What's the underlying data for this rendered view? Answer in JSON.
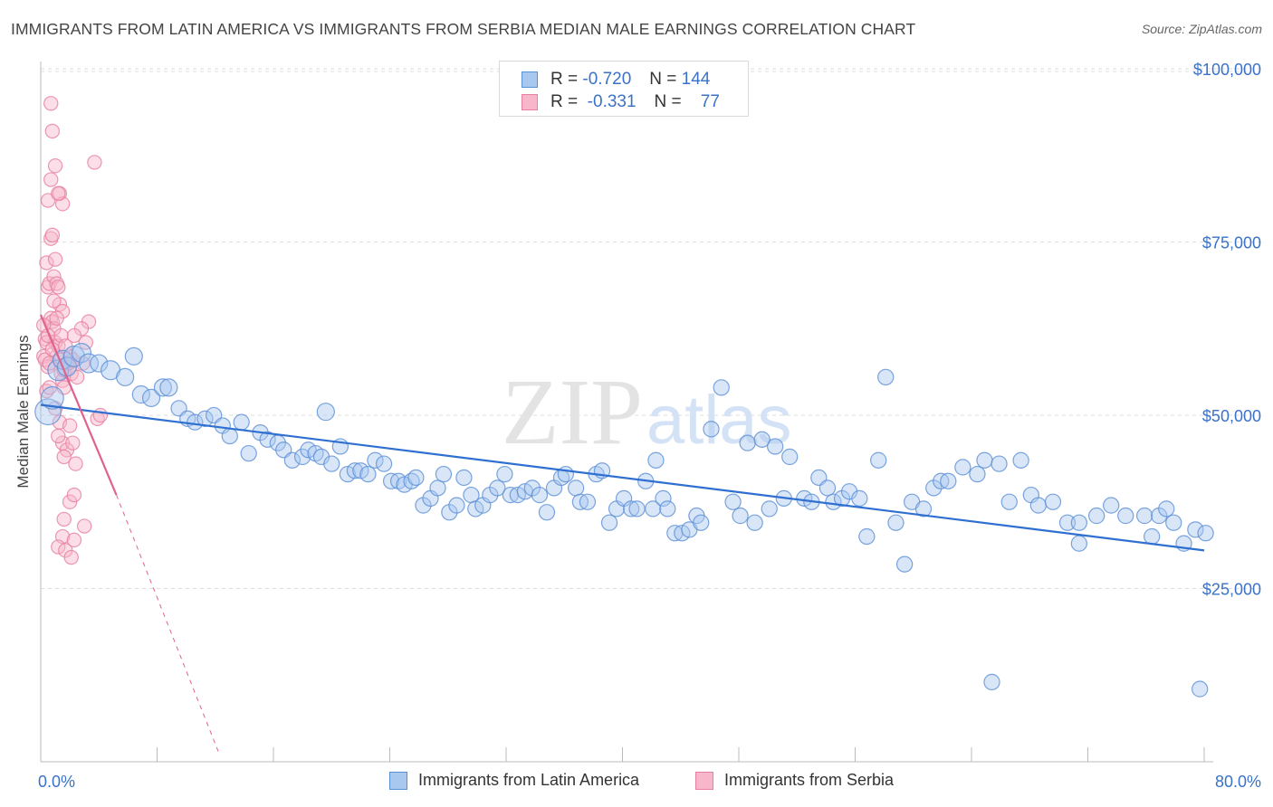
{
  "header": {
    "title": "IMMIGRANTS FROM LATIN AMERICA VS IMMIGRANTS FROM SERBIA MEDIAN MALE EARNINGS CORRELATION CHART",
    "source": "Source: ZipAtlas.com"
  },
  "watermark": {
    "zip": "ZIP",
    "atlas": "atlas"
  },
  "legend_top": {
    "rows": [
      {
        "r_label": "R =",
        "r_value": "-0.720",
        "n_label": "N =",
        "n_value": "144"
      },
      {
        "r_label": "R =",
        "r_value": "-0.331",
        "n_label": "N =",
        "n_value": "77"
      }
    ]
  },
  "colors": {
    "blue_fill": "#a9c8f0",
    "blue_stroke": "#5b8fd6",
    "blue_line": "#2e6fd1",
    "pink_fill": "#f7b6c9",
    "pink_stroke": "#e77fa0",
    "pink_line": "#e0628d",
    "axis_label": "#3a72c9"
  },
  "chart_data": {
    "type": "scatter",
    "title": "IMMIGRANTS FROM LATIN AMERICA VS IMMIGRANTS FROM SERBIA MEDIAN MALE EARNINGS CORRELATION CHART",
    "xlabel": "",
    "ylabel": "Median Male Earnings",
    "xlim": [
      0,
      80
    ],
    "ylim": [
      0,
      105000
    ],
    "x_tick_labels": [
      "0.0%",
      "80.0%"
    ],
    "y_ticks": [
      25000,
      50000,
      75000,
      100000
    ],
    "y_tick_labels": [
      "$25,000",
      "$50,000",
      "$75,000",
      "$100,000"
    ],
    "grid": true,
    "legend_placement": "bottom",
    "series": [
      {
        "name": "Immigrants from Latin America",
        "color": "#a9c8f0",
        "trend": {
          "x": [
            0,
            80
          ],
          "y": [
            51500,
            30500
          ]
        },
        "points": [
          [
            0.5,
            50500,
            1.5
          ],
          [
            0.8,
            52500,
            1.3
          ],
          [
            1.2,
            56500,
            1.2
          ],
          [
            1.5,
            58000,
            1.1
          ],
          [
            1.8,
            57000,
            1.1
          ],
          [
            2.3,
            58500,
            1.2
          ],
          [
            2.8,
            59000,
            1.1
          ],
          [
            3.3,
            57500,
            1.1
          ],
          [
            4.0,
            57500,
            1.0
          ],
          [
            4.8,
            56500,
            1.1
          ],
          [
            5.8,
            55500,
            1.0
          ],
          [
            6.4,
            58500,
            1.0
          ],
          [
            6.9,
            53000,
            1.0
          ],
          [
            7.6,
            52500,
            1.0
          ],
          [
            8.4,
            54000,
            1.0
          ],
          [
            8.8,
            54000,
            1.0
          ],
          [
            9.5,
            51000,
            0.9
          ],
          [
            10.1,
            49500,
            0.9
          ],
          [
            10.6,
            49000,
            0.9
          ],
          [
            11.3,
            49500,
            0.9
          ],
          [
            11.9,
            50000,
            0.9
          ],
          [
            12.5,
            48500,
            0.9
          ],
          [
            13.0,
            47000,
            0.9
          ],
          [
            13.8,
            49000,
            0.9
          ],
          [
            14.3,
            44500,
            0.9
          ],
          [
            15.1,
            47500,
            0.9
          ],
          [
            15.6,
            46500,
            0.9
          ],
          [
            16.3,
            46000,
            0.9
          ],
          [
            16.7,
            45000,
            0.9
          ],
          [
            17.3,
            43500,
            0.9
          ],
          [
            18.0,
            44000,
            0.9
          ],
          [
            18.4,
            45000,
            0.9
          ],
          [
            18.9,
            44500,
            0.9
          ],
          [
            19.3,
            44000,
            0.9
          ],
          [
            19.6,
            50500,
            1.0
          ],
          [
            20.0,
            43000,
            0.9
          ],
          [
            20.6,
            45500,
            0.9
          ],
          [
            21.1,
            41500,
            0.9
          ],
          [
            21.6,
            42000,
            0.9
          ],
          [
            22.0,
            42000,
            0.9
          ],
          [
            22.5,
            41500,
            0.9
          ],
          [
            23.0,
            43500,
            0.9
          ],
          [
            23.6,
            43000,
            0.9
          ],
          [
            24.1,
            40500,
            0.9
          ],
          [
            24.6,
            40500,
            0.9
          ],
          [
            25.0,
            40000,
            0.9
          ],
          [
            25.5,
            40500,
            0.9
          ],
          [
            25.8,
            41000,
            0.9
          ],
          [
            26.3,
            37000,
            0.9
          ],
          [
            26.8,
            38000,
            0.9
          ],
          [
            27.3,
            39500,
            0.9
          ],
          [
            27.7,
            41500,
            0.9
          ],
          [
            28.1,
            36000,
            0.9
          ],
          [
            28.6,
            37000,
            0.9
          ],
          [
            29.1,
            41000,
            0.9
          ],
          [
            29.6,
            38500,
            0.9
          ],
          [
            29.9,
            36500,
            0.9
          ],
          [
            30.4,
            37000,
            0.9
          ],
          [
            30.9,
            38500,
            0.9
          ],
          [
            31.4,
            39500,
            0.9
          ],
          [
            31.9,
            41500,
            0.9
          ],
          [
            32.3,
            38500,
            0.9
          ],
          [
            32.8,
            38500,
            0.9
          ],
          [
            33.3,
            39000,
            0.9
          ],
          [
            33.8,
            39500,
            0.9
          ],
          [
            34.3,
            38500,
            0.9
          ],
          [
            34.8,
            36000,
            0.9
          ],
          [
            35.3,
            39500,
            0.9
          ],
          [
            35.8,
            41000,
            0.9
          ],
          [
            36.1,
            41500,
            0.9
          ],
          [
            36.8,
            39500,
            0.9
          ],
          [
            37.1,
            37500,
            0.9
          ],
          [
            37.6,
            37500,
            0.9
          ],
          [
            38.2,
            41500,
            0.9
          ],
          [
            38.6,
            42000,
            0.9
          ],
          [
            39.1,
            34500,
            0.9
          ],
          [
            39.6,
            36500,
            0.9
          ],
          [
            40.1,
            38000,
            0.9
          ],
          [
            40.6,
            36500,
            0.9
          ],
          [
            41.0,
            36500,
            0.9
          ],
          [
            41.6,
            40500,
            0.9
          ],
          [
            42.1,
            36500,
            0.9
          ],
          [
            42.3,
            43500,
            0.9
          ],
          [
            42.8,
            38000,
            0.9
          ],
          [
            43.1,
            36500,
            0.9
          ],
          [
            43.6,
            33000,
            0.9
          ],
          [
            44.1,
            33000,
            0.9
          ],
          [
            44.6,
            33500,
            0.9
          ],
          [
            45.1,
            35500,
            0.9
          ],
          [
            45.4,
            34500,
            0.9
          ],
          [
            46.1,
            48000,
            0.9
          ],
          [
            46.8,
            54000,
            0.9
          ],
          [
            47.6,
            37500,
            0.9
          ],
          [
            48.1,
            35500,
            0.9
          ],
          [
            48.6,
            46000,
            0.9
          ],
          [
            49.1,
            34500,
            0.9
          ],
          [
            49.6,
            46500,
            0.9
          ],
          [
            50.1,
            36500,
            0.9
          ],
          [
            50.5,
            45500,
            0.9
          ],
          [
            51.1,
            38000,
            0.9
          ],
          [
            51.5,
            44000,
            0.9
          ],
          [
            52.5,
            38000,
            0.9
          ],
          [
            53.0,
            37500,
            0.9
          ],
          [
            53.5,
            41000,
            0.9
          ],
          [
            54.1,
            39500,
            0.9
          ],
          [
            54.5,
            37500,
            0.9
          ],
          [
            55.1,
            38000,
            0.9
          ],
          [
            55.6,
            39000,
            0.9
          ],
          [
            56.3,
            38000,
            0.9
          ],
          [
            56.8,
            32500,
            0.9
          ],
          [
            57.6,
            43500,
            0.9
          ],
          [
            58.1,
            55500,
            0.9
          ],
          [
            58.8,
            34500,
            0.9
          ],
          [
            59.4,
            28500,
            0.9
          ],
          [
            59.9,
            37500,
            0.9
          ],
          [
            60.7,
            36500,
            0.9
          ],
          [
            61.4,
            39500,
            0.9
          ],
          [
            61.9,
            40500,
            0.9
          ],
          [
            62.4,
            40500,
            0.9
          ],
          [
            63.4,
            42500,
            0.9
          ],
          [
            64.4,
            41500,
            0.9
          ],
          [
            64.9,
            43500,
            0.9
          ],
          [
            65.4,
            11500,
            0.9
          ],
          [
            65.9,
            43000,
            0.9
          ],
          [
            66.6,
            37500,
            0.9
          ],
          [
            67.4,
            43500,
            0.9
          ],
          [
            68.1,
            38500,
            0.9
          ],
          [
            68.6,
            37000,
            0.9
          ],
          [
            69.6,
            37500,
            0.9
          ],
          [
            70.6,
            34500,
            0.9
          ],
          [
            71.4,
            31500,
            0.9
          ],
          [
            72.6,
            35500,
            0.9
          ],
          [
            73.6,
            37000,
            0.9
          ],
          [
            74.6,
            35500,
            0.9
          ],
          [
            75.9,
            35500,
            0.9
          ],
          [
            76.9,
            35500,
            0.9
          ],
          [
            77.4,
            36500,
            0.9
          ],
          [
            77.9,
            34500,
            0.9
          ],
          [
            78.6,
            31500,
            0.9
          ],
          [
            79.4,
            33500,
            0.9
          ],
          [
            79.7,
            10500,
            0.9
          ],
          [
            80.1,
            33000,
            0.9
          ],
          [
            76.4,
            32500,
            0.9
          ],
          [
            71.4,
            34500,
            0.9
          ]
        ]
      },
      {
        "name": "Immigrants from Serbia",
        "color": "#f7b6c9",
        "trend": {
          "x": [
            0,
            5.2
          ],
          "y": [
            64500,
            38500
          ],
          "dash_to": [
            12.3,
            1000
          ]
        },
        "points": [
          [
            0.2,
            58500,
            0.8
          ],
          [
            0.3,
            61000,
            0.8
          ],
          [
            0.4,
            53500,
            0.8
          ],
          [
            0.5,
            57000,
            0.8
          ],
          [
            0.6,
            54000,
            0.8
          ],
          [
            0.7,
            64000,
            0.8
          ],
          [
            0.8,
            63500,
            0.8
          ],
          [
            0.9,
            62500,
            0.8
          ],
          [
            1.0,
            60500,
            0.8
          ],
          [
            1.1,
            58500,
            0.8
          ],
          [
            1.2,
            60000,
            0.8
          ],
          [
            1.3,
            58000,
            0.8
          ],
          [
            1.4,
            56000,
            0.8
          ],
          [
            1.5,
            55000,
            0.8
          ],
          [
            1.6,
            54000,
            0.8
          ],
          [
            0.4,
            72000,
            0.8
          ],
          [
            0.5,
            68500,
            0.8
          ],
          [
            0.6,
            69000,
            0.8
          ],
          [
            0.7,
            75500,
            0.8
          ],
          [
            0.8,
            76000,
            0.8
          ],
          [
            0.9,
            70000,
            0.8
          ],
          [
            1.0,
            72500,
            0.8
          ],
          [
            1.1,
            69000,
            0.8
          ],
          [
            1.2,
            68500,
            0.8
          ],
          [
            0.5,
            81000,
            0.8
          ],
          [
            0.7,
            84000,
            0.8
          ],
          [
            1.0,
            86000,
            0.8
          ],
          [
            1.3,
            82000,
            0.8
          ],
          [
            1.5,
            80500,
            0.8
          ],
          [
            1.2,
            82000,
            0.8
          ],
          [
            0.8,
            91000,
            0.8
          ],
          [
            0.7,
            95000,
            0.8
          ],
          [
            3.7,
            86500,
            0.8
          ],
          [
            3.3,
            63500,
            0.8
          ],
          [
            3.1,
            60500,
            0.8
          ],
          [
            2.8,
            62500,
            0.8
          ],
          [
            2.3,
            61500,
            0.8
          ],
          [
            2.0,
            58500,
            0.8
          ],
          [
            1.8,
            57500,
            0.8
          ],
          [
            1.6,
            56500,
            0.8
          ],
          [
            2.1,
            56000,
            0.8
          ],
          [
            2.5,
            55500,
            0.8
          ],
          [
            2.9,
            57500,
            0.8
          ],
          [
            1.0,
            51000,
            0.8
          ],
          [
            1.3,
            49000,
            0.8
          ],
          [
            1.5,
            46000,
            0.8
          ],
          [
            1.8,
            45000,
            0.8
          ],
          [
            2.0,
            48500,
            0.8
          ],
          [
            1.2,
            47000,
            0.8
          ],
          [
            1.6,
            44000,
            0.8
          ],
          [
            2.4,
            43000,
            0.8
          ],
          [
            2.2,
            46000,
            0.8
          ],
          [
            3.9,
            49500,
            0.8
          ],
          [
            4.1,
            50000,
            0.8
          ],
          [
            2.0,
            37500,
            0.8
          ],
          [
            2.3,
            38500,
            0.8
          ],
          [
            3.0,
            34000,
            0.8
          ],
          [
            1.5,
            32500,
            0.8
          ],
          [
            1.2,
            31000,
            0.8
          ],
          [
            1.7,
            30500,
            0.8
          ],
          [
            2.1,
            29500,
            0.8
          ],
          [
            2.3,
            32000,
            0.8
          ],
          [
            1.6,
            35000,
            0.8
          ],
          [
            1.3,
            66000,
            0.8
          ],
          [
            1.5,
            65000,
            0.8
          ],
          [
            0.4,
            60500,
            0.8
          ],
          [
            0.3,
            58000,
            0.8
          ],
          [
            0.6,
            57500,
            0.8
          ],
          [
            0.9,
            66500,
            0.8
          ],
          [
            1.1,
            64000,
            0.8
          ],
          [
            0.2,
            63000,
            0.8
          ],
          [
            0.5,
            61500,
            0.8
          ],
          [
            0.8,
            59500,
            0.8
          ],
          [
            1.4,
            61500,
            0.8
          ],
          [
            1.7,
            60000,
            0.8
          ],
          [
            1.9,
            57500,
            0.8
          ],
          [
            2.2,
            58000,
            0.8
          ]
        ]
      }
    ]
  },
  "bottom_legend": {
    "items": [
      {
        "label": "Immigrants from Latin America"
      },
      {
        "label": "Immigrants from Serbia"
      }
    ]
  }
}
